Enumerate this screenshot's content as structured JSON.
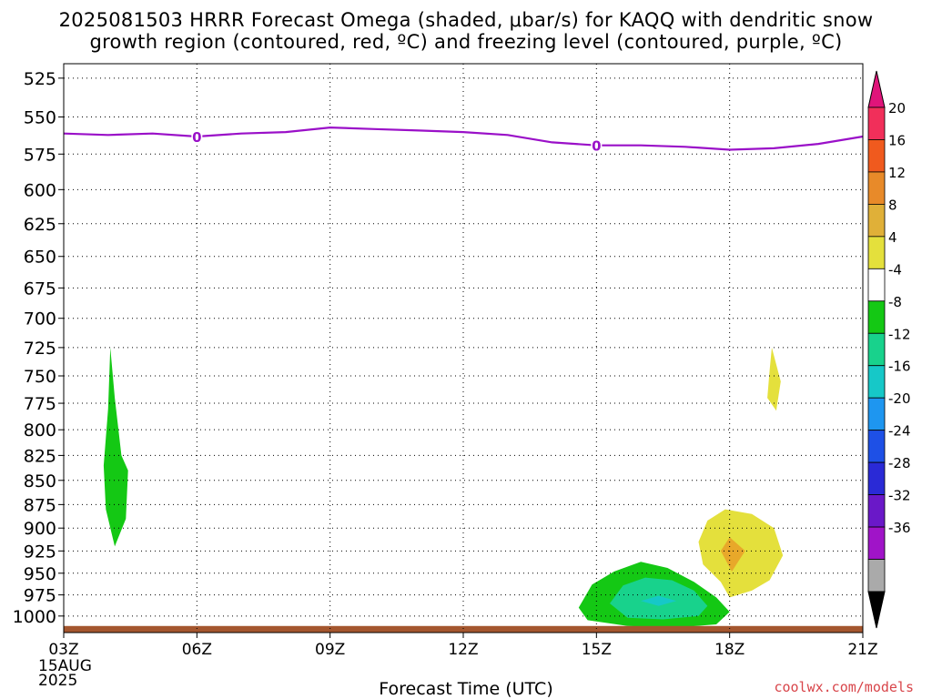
{
  "title_line1": "2025081503 HRRR Forecast Omega (shaded, μbar/s) for KAQQ with dendritic snow",
  "title_line2": "growth region (contoured, red, ºC) and freezing level (contoured, purple, ºC)",
  "credit": "coolwx.com/models",
  "chart_data": {
    "type": "heatmap",
    "title": "2025081503 HRRR Forecast Omega (shaded, μbar/s) for KAQQ with dendritic snow growth region (contoured, red, ºC) and freezing level (contoured, purple, ºC)",
    "xlabel": "Forecast Time (UTC)",
    "ylabel": "",
    "x_date_label": [
      "15AUG",
      "2025"
    ],
    "x_ticks": [
      {
        "hour": 0,
        "label": "03Z"
      },
      {
        "hour": 3,
        "label": "06Z"
      },
      {
        "hour": 6,
        "label": "09Z"
      },
      {
        "hour": 9,
        "label": "12Z"
      },
      {
        "hour": 12,
        "label": "15Z"
      },
      {
        "hour": 15,
        "label": "18Z"
      },
      {
        "hour": 18,
        "label": "21Z"
      }
    ],
    "xlim_hours": [
      0,
      18
    ],
    "y_ticks": [
      525,
      550,
      575,
      600,
      625,
      650,
      675,
      700,
      725,
      750,
      775,
      800,
      825,
      850,
      875,
      900,
      925,
      950,
      975,
      1000
    ],
    "ylim": [
      516,
      1020
    ],
    "y_scale": "log-pressure",
    "grid": true,
    "colorbar": {
      "levels": [
        "20",
        "16",
        "12",
        "8",
        "4",
        "-4",
        "-8",
        "-12",
        "-16",
        "-20",
        "-24",
        "-28",
        "-32",
        "-36"
      ],
      "colors": [
        "#f12f5a",
        "#f05a1e",
        "#e88a29",
        "#e0b038",
        "#e4e03c",
        "#ffffff",
        "#14c814",
        "#18d28c",
        "#16c8c8",
        "#1e96f0",
        "#1e50e6",
        "#2a2ad6",
        "#6a18c8",
        "#a014c8",
        "#aaaaaa",
        "#000000"
      ],
      "top_color": "#e0147a",
      "bottom_color": "#000000"
    },
    "freezing_level": {
      "color": "#9a10c8",
      "label": "0",
      "label_hours": [
        3,
        12
      ],
      "points": [
        {
          "hour": 0,
          "p": 561
        },
        {
          "hour": 1,
          "p": 562
        },
        {
          "hour": 2,
          "p": 561
        },
        {
          "hour": 3,
          "p": 563
        },
        {
          "hour": 4,
          "p": 561
        },
        {
          "hour": 5,
          "p": 560
        },
        {
          "hour": 6,
          "p": 557
        },
        {
          "hour": 7,
          "p": 558
        },
        {
          "hour": 8,
          "p": 559
        },
        {
          "hour": 9,
          "p": 560
        },
        {
          "hour": 10,
          "p": 562
        },
        {
          "hour": 11,
          "p": 567
        },
        {
          "hour": 12,
          "p": 569
        },
        {
          "hour": 13,
          "p": 569
        },
        {
          "hour": 14,
          "p": 570
        },
        {
          "hour": 15,
          "p": 572
        },
        {
          "hour": 16,
          "p": 571
        },
        {
          "hour": 17,
          "p": 568
        },
        {
          "hour": 18,
          "p": 563
        }
      ]
    },
    "omega_regions": [
      {
        "name": "ascent-early-04z",
        "value_range": "-8 to -4",
        "color": "#14c814",
        "points": [
          [
            1.05,
            725
          ],
          [
            1.15,
            770
          ],
          [
            1.3,
            825
          ],
          [
            1.45,
            840
          ],
          [
            1.4,
            890
          ],
          [
            1.15,
            920
          ],
          [
            0.95,
            880
          ],
          [
            0.9,
            835
          ],
          [
            1.0,
            780
          ]
        ]
      },
      {
        "name": "ascent-15z-17z-outer",
        "value_range": "-8 to -4",
        "color": "#14c814",
        "points": [
          [
            11.6,
            990
          ],
          [
            11.9,
            963
          ],
          [
            12.4,
            948
          ],
          [
            13.0,
            937
          ],
          [
            13.6,
            944
          ],
          [
            14.2,
            960
          ],
          [
            14.7,
            978
          ],
          [
            15.0,
            995
          ],
          [
            14.7,
            1010
          ],
          [
            13.8,
            1014
          ],
          [
            12.7,
            1012
          ],
          [
            11.8,
            1005
          ]
        ]
      },
      {
        "name": "ascent-15z-17z-inner",
        "value_range": "-12 to -8",
        "color": "#18d28c",
        "points": [
          [
            12.3,
            985
          ],
          [
            12.6,
            964
          ],
          [
            13.1,
            955
          ],
          [
            13.7,
            958
          ],
          [
            14.2,
            970
          ],
          [
            14.5,
            988
          ],
          [
            14.3,
            1000
          ],
          [
            13.5,
            1004
          ],
          [
            12.7,
            1002
          ]
        ]
      },
      {
        "name": "ascent-16z-core",
        "value_range": "-16 to -12",
        "color": "#16c8c8",
        "points": [
          [
            13.0,
            982
          ],
          [
            13.4,
            976
          ],
          [
            13.8,
            982
          ],
          [
            13.4,
            988
          ]
        ]
      },
      {
        "name": "descent-19z-small",
        "value_range": "4 to 8",
        "color": "#e4e03c",
        "points": [
          [
            15.95,
            725
          ],
          [
            16.15,
            755
          ],
          [
            16.05,
            782
          ],
          [
            15.85,
            770
          ],
          [
            15.9,
            745
          ]
        ]
      },
      {
        "name": "descent-18z-outer",
        "value_range": "4 to 8",
        "color": "#e4e03c",
        "points": [
          [
            14.3,
            915
          ],
          [
            14.5,
            892
          ],
          [
            14.9,
            880
          ],
          [
            15.5,
            885
          ],
          [
            16.0,
            900
          ],
          [
            16.2,
            930
          ],
          [
            15.9,
            958
          ],
          [
            15.5,
            970
          ],
          [
            15.0,
            978
          ],
          [
            14.8,
            960
          ],
          [
            14.4,
            940
          ]
        ]
      },
      {
        "name": "descent-18z-core",
        "value_range": "8 to 12",
        "color": "#e8a82a",
        "points": [
          [
            14.8,
            925
          ],
          [
            15.0,
            910
          ],
          [
            15.35,
            925
          ],
          [
            15.05,
            948
          ]
        ]
      }
    ],
    "terrain": {
      "color": "#a4562e",
      "p_top": 1012,
      "p_bottom": 1020
    }
  }
}
